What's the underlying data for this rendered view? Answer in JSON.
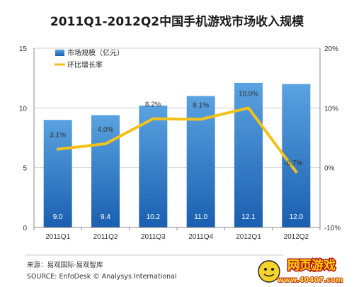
{
  "chart_data": {
    "type": "bar",
    "title": "2011Q1-2012Q2中国手机游戏市场收入规模",
    "categories": [
      "2011Q1",
      "2011Q2",
      "2011Q3",
      "2011Q4",
      "2012Q1",
      "2012Q2"
    ],
    "series": [
      {
        "name": "市场规模（亿元）",
        "type": "bar",
        "axis": "left",
        "values": [
          9.0,
          9.4,
          10.2,
          11.0,
          12.1,
          12.0
        ],
        "labels": [
          "9.0",
          "9.4",
          "10.2",
          "11.0",
          "12.1",
          "12.0"
        ]
      },
      {
        "name": "环比增长率",
        "type": "line",
        "axis": "right",
        "values": [
          3.1,
          4.0,
          8.2,
          8.1,
          10.0,
          -0.7
        ],
        "labels": [
          "3.1%",
          "4.0%",
          "8.2%",
          "8.1%",
          "10.0%",
          "-0.7%"
        ]
      }
    ],
    "y_left": {
      "ylim": [
        0,
        15
      ],
      "ticks": [
        "0",
        "5",
        "10",
        "15"
      ],
      "tick_values": [
        0,
        5,
        10,
        15
      ]
    },
    "y_right": {
      "ylim": [
        -10,
        20
      ],
      "ticks": [
        "-10%",
        "0%",
        "10%",
        "20%"
      ],
      "tick_values": [
        -10,
        0,
        10,
        20
      ]
    },
    "grid": true,
    "legend": "top-left",
    "colors": {
      "bar_top": "#5aa2e0",
      "bar_bottom": "#1a5fb0",
      "line": "#f3c21a",
      "grid": "#d0d0d0"
    }
  },
  "footer": {
    "source_cn": "来源：易观国际·易观智库",
    "source_en": "SOURCE: EnfoDesk © Analysys International"
  },
  "watermark": {
    "text": "网页游戏",
    "url": "www.40407.com"
  }
}
